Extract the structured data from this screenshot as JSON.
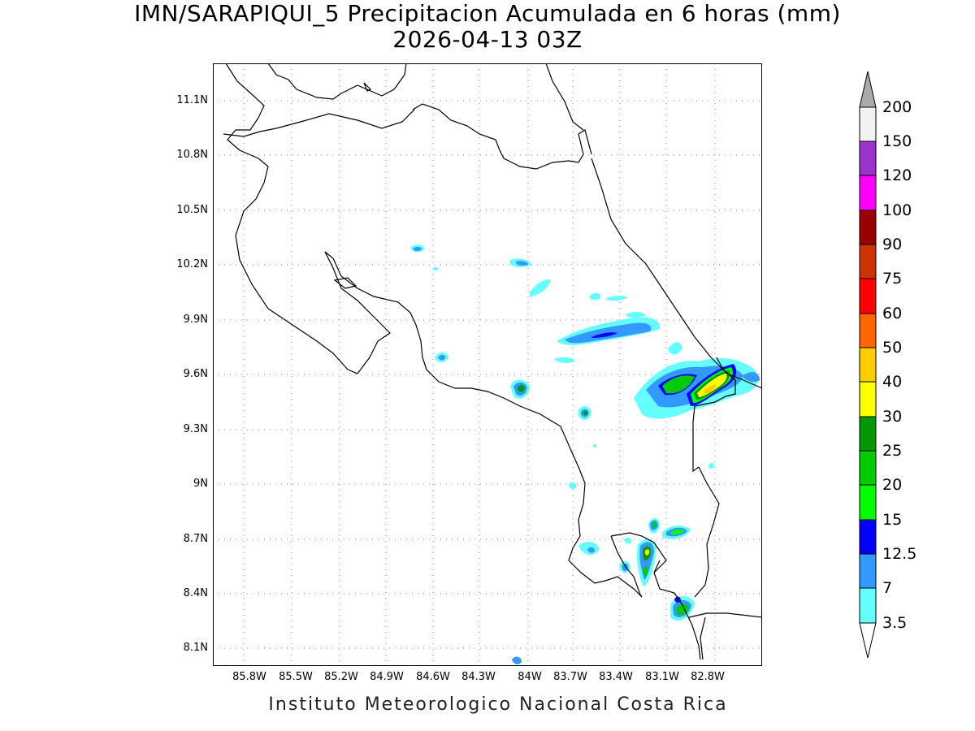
{
  "title": {
    "line1": "IMN/SARAPIQUI_5 Precipitacion Acumulada en 6 horas (mm)",
    "line2": "2026-04-13 03Z"
  },
  "footer": "Instituto Meteorologico Nacional Costa Rica",
  "axes": {
    "lat_ticks": [
      "11.1N",
      "10.8N",
      "10.5N",
      "10.2N",
      "9.9N",
      "9.6N",
      "9.3N",
      "9N",
      "8.7N",
      "8.4N",
      "8.1N"
    ],
    "lon_ticks": [
      "85.8W",
      "85.5W",
      "85.2W",
      "84.9W",
      "84.6W",
      "84.3W",
      "84W",
      "83.7W",
      "83.4W",
      "83.1W",
      "82.8W"
    ],
    "lat_range": [
      8.0,
      11.3
    ],
    "lon_range": [
      -85.95,
      -82.95
    ],
    "grid": "dotted"
  },
  "colorbar": {
    "labels": [
      "3.5",
      "7",
      "12.5",
      "15",
      "20",
      "25",
      "30",
      "40",
      "50",
      "60",
      "75",
      "90",
      "100",
      "120",
      "150",
      "200"
    ],
    "colors": [
      "#ffffff",
      "#66ffff",
      "#3399ff",
      "#0000ff",
      "#00ff00",
      "#00cc00",
      "#009900",
      "#ffff00",
      "#ffcc00",
      "#ff6600",
      "#ff0000",
      "#cc3300",
      "#990000",
      "#ff00ff",
      "#9933cc",
      "#f2f2f2",
      "#aaaaaa"
    ]
  }
}
